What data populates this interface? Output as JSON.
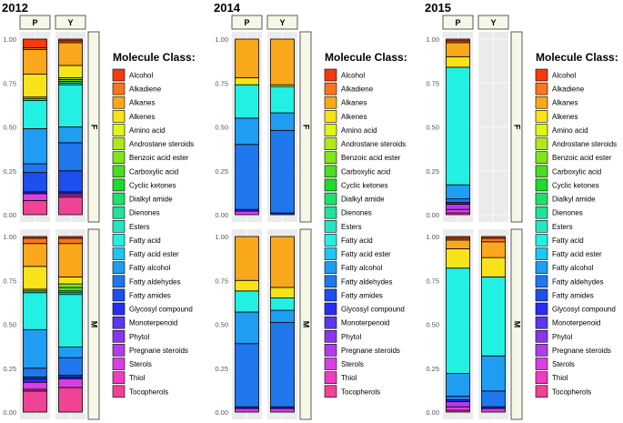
{
  "chart_data": {
    "type": "bar",
    "stacked": true,
    "legend_title": "Molecule Class:",
    "legend_placement": "right",
    "y_ticks": [
      "0.00",
      "0.25",
      "0.50",
      "0.75",
      "1.00"
    ],
    "ylim": [
      0,
      1
    ],
    "column_facets": [
      "P",
      "Y"
    ],
    "row_facets": [
      "F",
      "M"
    ],
    "classes": [
      {
        "name": "Alcohol",
        "color": "#F8380E"
      },
      {
        "name": "Alkadiene",
        "color": "#F8761D"
      },
      {
        "name": "Alkanes",
        "color": "#F9A81B"
      },
      {
        "name": "Alkenes",
        "color": "#F8E318"
      },
      {
        "name": "Amino acid",
        "color": "#DDF816"
      },
      {
        "name": "Androstane steroids",
        "color": "#AEEA1A"
      },
      {
        "name": "Benzoic acid ester",
        "color": "#7FE61C"
      },
      {
        "name": "Carboxylic acid",
        "color": "#49DD21"
      },
      {
        "name": "Cyclic ketones",
        "color": "#1DDC2C"
      },
      {
        "name": "Dialkyl amide",
        "color": "#1FE06A"
      },
      {
        "name": "Dienones",
        "color": "#22E29A"
      },
      {
        "name": "Esters",
        "color": "#25E6C2"
      },
      {
        "name": "Fatty acid",
        "color": "#22F0E3"
      },
      {
        "name": "Fatty acid ester",
        "color": "#1EC6F2"
      },
      {
        "name": "Fatty alcohol",
        "color": "#1E9DF2"
      },
      {
        "name": "Fatty aldehydes",
        "color": "#1F77EE"
      },
      {
        "name": "Fatty amides",
        "color": "#1D4EF0"
      },
      {
        "name": "Glycosyl compound",
        "color": "#2A2CF2"
      },
      {
        "name": "Monoterpenoid",
        "color": "#5B37F0"
      },
      {
        "name": "Phytol",
        "color": "#8A36EC"
      },
      {
        "name": "Pregnane steroids",
        "color": "#B23CEA"
      },
      {
        "name": "Sterols",
        "color": "#DC3DE4"
      },
      {
        "name": "Thiol",
        "color": "#EE3DC0"
      },
      {
        "name": "Tocopherols",
        "color": "#F04395"
      }
    ],
    "panels": [
      {
        "year": "2012",
        "bars": [
          {
            "col": "P",
            "row": "F",
            "segments": [
              [
                "Tocopherols",
                0.08
              ],
              [
                "Sterols",
                0.04
              ],
              [
                "Glycosyl compound",
                0.01
              ],
              [
                "Fatty amides",
                0.11
              ],
              [
                "Fatty aldehydes",
                0.05
              ],
              [
                "Fatty alcohol",
                0.2
              ],
              [
                "Fatty acid",
                0.16
              ],
              [
                "Esters",
                0.01
              ],
              [
                "Benzoic acid ester",
                0.01
              ],
              [
                "Alkenes",
                0.13
              ],
              [
                "Alkanes",
                0.14
              ],
              [
                "Alkadiene",
                0.01
              ],
              [
                "Alcohol",
                0.05
              ]
            ]
          },
          {
            "col": "Y",
            "row": "F",
            "segments": [
              [
                "Tocopherols",
                0.1
              ],
              [
                "Thiol",
                0.01
              ],
              [
                "Sterols",
                0.01
              ],
              [
                "Glycosyl compound",
                0.01
              ],
              [
                "Fatty amides",
                0.12
              ],
              [
                "Fatty aldehydes",
                0.16
              ],
              [
                "Fatty alcohol",
                0.09
              ],
              [
                "Fatty acid",
                0.24
              ],
              [
                "Esters",
                0.01
              ],
              [
                "Dienones",
                0.01
              ],
              [
                "Benzoic acid ester",
                0.01
              ],
              [
                "Androstane steroids",
                0.01
              ],
              [
                "Alkenes",
                0.07
              ],
              [
                "Alkanes",
                0.13
              ],
              [
                "Alkadiene",
                0.01
              ],
              [
                "Alcohol",
                0.01
              ]
            ]
          },
          {
            "col": "P",
            "row": "M",
            "segments": [
              [
                "Tocopherols",
                0.12
              ],
              [
                "Thiol",
                0.01
              ],
              [
                "Sterols",
                0.04
              ],
              [
                "Glycosyl compound",
                0.02
              ],
              [
                "Fatty amides",
                0.01
              ],
              [
                "Fatty aldehydes",
                0.05
              ],
              [
                "Fatty alcohol",
                0.22
              ],
              [
                "Fatty acid",
                0.21
              ],
              [
                "Esters",
                0.01
              ],
              [
                "Benzoic acid ester",
                0.01
              ],
              [
                "Alkenes",
                0.13
              ],
              [
                "Alkanes",
                0.13
              ],
              [
                "Alkadiene",
                0.03
              ],
              [
                "Alcohol",
                0.01
              ]
            ]
          },
          {
            "col": "Y",
            "row": "M",
            "segments": [
              [
                "Tocopherols",
                0.14
              ],
              [
                "Sterols",
                0.05
              ],
              [
                "Glycosyl compound",
                0.01
              ],
              [
                "Fatty amides",
                0.01
              ],
              [
                "Fatty aldehydes",
                0.1
              ],
              [
                "Fatty alcohol",
                0.06
              ],
              [
                "Fatty acid",
                0.3
              ],
              [
                "Esters",
                0.01
              ],
              [
                "Dienones",
                0.01
              ],
              [
                "Carboxylic acid",
                0.02
              ],
              [
                "Benzoic acid ester",
                0.02
              ],
              [
                "Alkenes",
                0.04
              ],
              [
                "Alkanes",
                0.19
              ],
              [
                "Alkadiene",
                0.03
              ],
              [
                "Alcohol",
                0.01
              ]
            ]
          }
        ]
      },
      {
        "year": "2014",
        "bars": [
          {
            "col": "P",
            "row": "F",
            "segments": [
              [
                "Sterols",
                0.02
              ],
              [
                "Glycosyl compound",
                0.01
              ],
              [
                "Fatty aldehydes",
                0.37
              ],
              [
                "Fatty alcohol",
                0.15
              ],
              [
                "Fatty acid",
                0.19
              ],
              [
                "Alkenes",
                0.04
              ],
              [
                "Alkanes",
                0.22
              ]
            ]
          },
          {
            "col": "Y",
            "row": "F",
            "segments": [
              [
                "Glycosyl compound",
                0.01
              ],
              [
                "Fatty aldehydes",
                0.47
              ],
              [
                "Fatty alcohol",
                0.1
              ],
              [
                "Fatty acid",
                0.15
              ],
              [
                "Alkenes",
                0.01
              ],
              [
                "Alkanes",
                0.26
              ]
            ]
          },
          {
            "col": "P",
            "row": "M",
            "segments": [
              [
                "Sterols",
                0.02
              ],
              [
                "Glycosyl compound",
                0.01
              ],
              [
                "Fatty aldehydes",
                0.36
              ],
              [
                "Fatty alcohol",
                0.18
              ],
              [
                "Fatty acid",
                0.12
              ],
              [
                "Alkenes",
                0.06
              ],
              [
                "Alkanes",
                0.25
              ]
            ]
          },
          {
            "col": "Y",
            "row": "M",
            "segments": [
              [
                "Sterols",
                0.02
              ],
              [
                "Glycosyl compound",
                0.01
              ],
              [
                "Fatty aldehydes",
                0.48
              ],
              [
                "Fatty alcohol",
                0.07
              ],
              [
                "Fatty acid",
                0.07
              ],
              [
                "Alkenes",
                0.06
              ],
              [
                "Alkanes",
                0.29
              ]
            ]
          }
        ]
      },
      {
        "year": "2015",
        "bars": [
          {
            "col": "P",
            "row": "F",
            "segments": [
              [
                "Tocopherols",
                0.01
              ],
              [
                "Sterols",
                0.02
              ],
              [
                "Pregnane steroids",
                0.03
              ],
              [
                "Glycosyl compound",
                0.01
              ],
              [
                "Fatty aldehydes",
                0.02
              ],
              [
                "Fatty alcohol",
                0.08
              ],
              [
                "Fatty acid",
                0.67
              ],
              [
                "Alkenes",
                0.06
              ],
              [
                "Alkanes",
                0.08
              ],
              [
                "Alkadiene",
                0.01
              ],
              [
                "Alcohol",
                0.01
              ]
            ]
          },
          {
            "col": "P",
            "row": "M",
            "segments": [
              [
                "Tocopherols",
                0.01
              ],
              [
                "Sterols",
                0.02
              ],
              [
                "Pregnane steroids",
                0.03
              ],
              [
                "Glycosyl compound",
                0.01
              ],
              [
                "Fatty aldehydes",
                0.02
              ],
              [
                "Fatty alcohol",
                0.13
              ],
              [
                "Fatty acid",
                0.6
              ],
              [
                "Alkenes",
                0.11
              ],
              [
                "Alkanes",
                0.05
              ],
              [
                "Alkadiene",
                0.01
              ],
              [
                "Alcohol",
                0.01
              ]
            ]
          },
          {
            "col": "Y",
            "row": "M",
            "segments": [
              [
                "Sterols",
                0.02
              ],
              [
                "Glycosyl compound",
                0.01
              ],
              [
                "Fatty aldehydes",
                0.09
              ],
              [
                "Fatty alcohol",
                0.2
              ],
              [
                "Fatty acid",
                0.45
              ],
              [
                "Alkenes",
                0.11
              ],
              [
                "Alkanes",
                0.09
              ],
              [
                "Alkadiene",
                0.02
              ],
              [
                "Alcohol",
                0.01
              ]
            ]
          }
        ]
      }
    ]
  }
}
